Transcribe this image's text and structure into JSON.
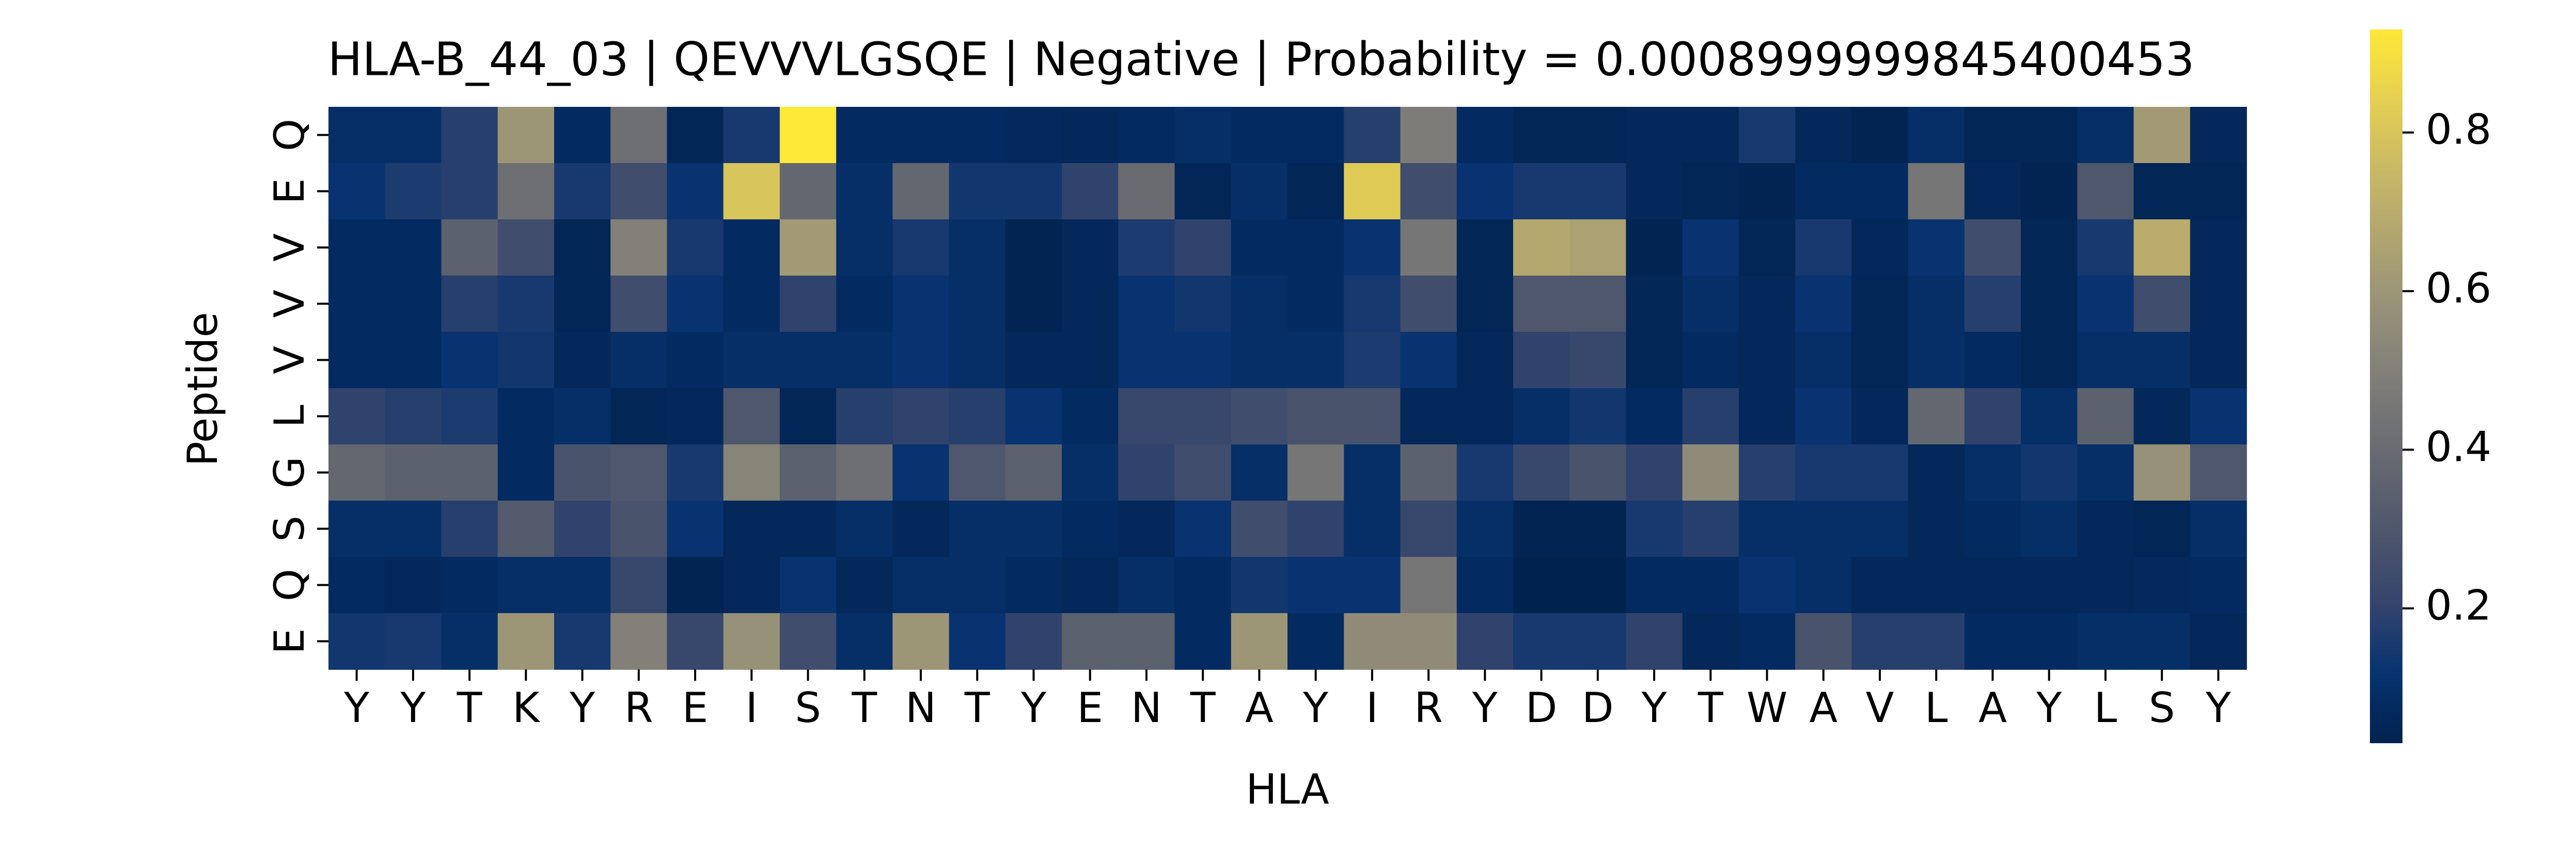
{
  "chart_data": {
    "type": "heatmap",
    "title": "HLA-B_44_03 | QEVVVLGSQE | Negative | Probability = 0.0008999999845400453",
    "xlabel": "HLA",
    "ylabel": "Peptide",
    "x_categories": [
      "Y",
      "Y",
      "T",
      "K",
      "Y",
      "R",
      "E",
      "I",
      "S",
      "T",
      "N",
      "T",
      "Y",
      "E",
      "N",
      "T",
      "A",
      "Y",
      "I",
      "R",
      "Y",
      "D",
      "D",
      "Y",
      "T",
      "W",
      "A",
      "V",
      "L",
      "A",
      "Y",
      "L",
      "S",
      "Y"
    ],
    "y_categories": [
      "Q",
      "E",
      "V",
      "V",
      "V",
      "L",
      "G",
      "S",
      "Q",
      "E"
    ],
    "colormap": "cividis",
    "zlim": [
      0.03,
      0.93
    ],
    "zticks": [
      0.2,
      0.4,
      0.6,
      0.8
    ],
    "values": [
      [
        0.1,
        0.1,
        0.18,
        0.6,
        0.08,
        0.42,
        0.05,
        0.15,
        0.93,
        0.08,
        0.08,
        0.08,
        0.07,
        0.06,
        0.08,
        0.1,
        0.08,
        0.08,
        0.18,
        0.48,
        0.08,
        0.05,
        0.05,
        0.06,
        0.06,
        0.15,
        0.06,
        0.04,
        0.1,
        0.05,
        0.05,
        0.1,
        0.62,
        0.06
      ],
      [
        0.12,
        0.16,
        0.18,
        0.42,
        0.15,
        0.25,
        0.12,
        0.8,
        0.38,
        0.1,
        0.38,
        0.14,
        0.14,
        0.2,
        0.4,
        0.05,
        0.1,
        0.05,
        0.82,
        0.25,
        0.12,
        0.15,
        0.15,
        0.06,
        0.05,
        0.04,
        0.08,
        0.08,
        0.45,
        0.06,
        0.04,
        0.3,
        0.05,
        0.05
      ],
      [
        0.08,
        0.08,
        0.35,
        0.25,
        0.05,
        0.5,
        0.15,
        0.08,
        0.62,
        0.1,
        0.15,
        0.1,
        0.04,
        0.06,
        0.16,
        0.2,
        0.08,
        0.08,
        0.12,
        0.45,
        0.05,
        0.68,
        0.65,
        0.04,
        0.12,
        0.05,
        0.15,
        0.06,
        0.12,
        0.25,
        0.05,
        0.15,
        0.7,
        0.06
      ],
      [
        0.08,
        0.08,
        0.18,
        0.15,
        0.05,
        0.25,
        0.12,
        0.08,
        0.2,
        0.08,
        0.12,
        0.1,
        0.04,
        0.06,
        0.12,
        0.14,
        0.1,
        0.08,
        0.15,
        0.25,
        0.05,
        0.3,
        0.3,
        0.05,
        0.1,
        0.06,
        0.12,
        0.05,
        0.1,
        0.18,
        0.05,
        0.12,
        0.25,
        0.06
      ],
      [
        0.08,
        0.08,
        0.12,
        0.14,
        0.06,
        0.1,
        0.08,
        0.1,
        0.1,
        0.1,
        0.12,
        0.1,
        0.06,
        0.06,
        0.12,
        0.12,
        0.1,
        0.1,
        0.16,
        0.12,
        0.06,
        0.2,
        0.22,
        0.05,
        0.08,
        0.06,
        0.1,
        0.05,
        0.1,
        0.08,
        0.05,
        0.1,
        0.1,
        0.06
      ],
      [
        0.2,
        0.18,
        0.16,
        0.08,
        0.1,
        0.05,
        0.06,
        0.3,
        0.05,
        0.18,
        0.2,
        0.18,
        0.12,
        0.08,
        0.22,
        0.22,
        0.25,
        0.28,
        0.28,
        0.06,
        0.06,
        0.1,
        0.14,
        0.08,
        0.18,
        0.06,
        0.12,
        0.06,
        0.38,
        0.2,
        0.1,
        0.35,
        0.06,
        0.12
      ],
      [
        0.38,
        0.35,
        0.35,
        0.08,
        0.28,
        0.3,
        0.15,
        0.52,
        0.35,
        0.42,
        0.12,
        0.3,
        0.35,
        0.1,
        0.2,
        0.25,
        0.1,
        0.45,
        0.1,
        0.35,
        0.15,
        0.22,
        0.28,
        0.2,
        0.55,
        0.18,
        0.15,
        0.15,
        0.06,
        0.1,
        0.14,
        0.1,
        0.58,
        0.3
      ],
      [
        0.1,
        0.1,
        0.18,
        0.32,
        0.2,
        0.28,
        0.12,
        0.06,
        0.06,
        0.1,
        0.06,
        0.1,
        0.1,
        0.08,
        0.06,
        0.12,
        0.25,
        0.2,
        0.1,
        0.22,
        0.1,
        0.04,
        0.04,
        0.15,
        0.18,
        0.1,
        0.1,
        0.1,
        0.06,
        0.08,
        0.1,
        0.06,
        0.05,
        0.1
      ],
      [
        0.08,
        0.06,
        0.08,
        0.1,
        0.1,
        0.22,
        0.04,
        0.06,
        0.12,
        0.06,
        0.1,
        0.1,
        0.08,
        0.06,
        0.1,
        0.08,
        0.14,
        0.12,
        0.12,
        0.45,
        0.08,
        0.03,
        0.03,
        0.08,
        0.08,
        0.12,
        0.1,
        0.06,
        0.06,
        0.06,
        0.06,
        0.06,
        0.07,
        0.08
      ],
      [
        0.14,
        0.15,
        0.1,
        0.6,
        0.15,
        0.5,
        0.22,
        0.58,
        0.25,
        0.1,
        0.6,
        0.12,
        0.2,
        0.35,
        0.35,
        0.08,
        0.6,
        0.08,
        0.55,
        0.55,
        0.2,
        0.15,
        0.15,
        0.2,
        0.06,
        0.08,
        0.28,
        0.18,
        0.18,
        0.08,
        0.08,
        0.1,
        0.1,
        0.06
      ]
    ]
  }
}
